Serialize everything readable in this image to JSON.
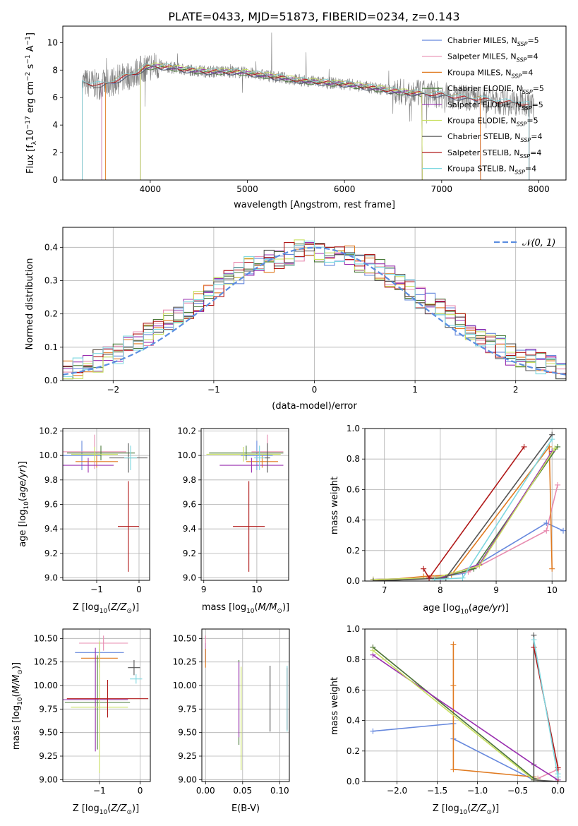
{
  "figure": {
    "title": "PLATE=0433, MJD=51873, FIBERID=0234, z=0.143"
  },
  "chart_data": [
    {
      "id": "spectrum",
      "type": "line",
      "title": "PLATE=0433, MJD=51873, FIBERID=0234, z=0.143",
      "xlabel": "wavelength [Angstrom, rest frame]",
      "ylabel": "Flux [f_λ 10^-17 erg cm^-2 s^-1 A^-1]",
      "xlim": [
        3100,
        8280
      ],
      "ylim": [
        0,
        11.2
      ],
      "xticks": [
        4000,
        5000,
        6000,
        7000,
        8000
      ],
      "yticks": [
        0,
        2,
        4,
        6,
        8,
        10
      ],
      "grid": false,
      "legend_position": "top-right",
      "data_color": "#808080",
      "continuum_wavelength": [
        3300,
        3500,
        3700,
        3850,
        3950,
        4050,
        4200,
        4400,
        4600,
        4800,
        5000,
        5200,
        5400,
        5600,
        5800,
        6000,
        6200,
        6400,
        6600,
        6800,
        7000,
        7200,
        7400,
        7600,
        7800,
        7950
      ],
      "continuum_flux": [
        7.1,
        6.9,
        7.4,
        7.8,
        8.2,
        8.3,
        8.2,
        8.0,
        7.9,
        7.9,
        7.8,
        7.6,
        7.4,
        7.2,
        7.1,
        7.0,
        6.8,
        6.6,
        6.4,
        6.3,
        6.2,
        6.0,
        5.9,
        5.7,
        5.6,
        5.4
      ],
      "models": [
        {
          "name": "Chabrier MILES, N_SSP=5",
          "color": "#6688dd",
          "wl_range": [
            3500,
            7400
          ]
        },
        {
          "name": "Salpeter MILES, N_SSP=4",
          "color": "#e88cb0",
          "wl_range": [
            3500,
            7400
          ]
        },
        {
          "name": "Kroupa MILES, N_SSP=4",
          "color": "#e07a20",
          "wl_range": [
            3540,
            7400
          ]
        },
        {
          "name": "Chabrier ELODIE, N_SSP=5",
          "color": "#4a7a3a",
          "wl_range": [
            3900,
            6800
          ]
        },
        {
          "name": "Salpeter ELODIE, N_SSP=5",
          "color": "#9a30b0",
          "wl_range": [
            3900,
            6800
          ]
        },
        {
          "name": "Kroupa ELODIE, N_SSP=5",
          "color": "#c8e060",
          "wl_range": [
            3900,
            6800
          ]
        },
        {
          "name": "Chabrier STELIB, N_SSP=4",
          "color": "#555555",
          "wl_range": [
            3300,
            7900
          ]
        },
        {
          "name": "Salpeter STELIB, N_SSP=4",
          "color": "#b01818",
          "wl_range": [
            3300,
            7900
          ]
        },
        {
          "name": "Kroupa STELIB, N_SSP=4",
          "color": "#7ed8e0",
          "wl_range": [
            3300,
            7900
          ]
        }
      ]
    },
    {
      "id": "residuals",
      "type": "line",
      "xlabel": "(data-model)/error",
      "ylabel": "Normed distribution",
      "xlim": [
        -2.5,
        2.5
      ],
      "ylim": [
        0,
        0.46
      ],
      "xticks": [
        -2,
        -1,
        0,
        1,
        2
      ],
      "yticks": [
        0.0,
        0.1,
        0.2,
        0.3,
        0.4
      ],
      "grid": true,
      "legend_position": "top-right",
      "legend": "N(0,1)",
      "gaussian_color": "#5b8de0",
      "bin_centers": [
        -2.45,
        -2.35,
        -2.25,
        -2.15,
        -2.05,
        -1.95,
        -1.85,
        -1.75,
        -1.65,
        -1.55,
        -1.45,
        -1.35,
        -1.25,
        -1.15,
        -1.05,
        -0.95,
        -0.85,
        -0.75,
        -0.65,
        -0.55,
        -0.45,
        -0.35,
        -0.25,
        -0.15,
        -0.05,
        0.05,
        0.15,
        0.25,
        0.35,
        0.45,
        0.55,
        0.65,
        0.75,
        0.85,
        0.95,
        1.05,
        1.15,
        1.25,
        1.35,
        1.45,
        1.55,
        1.65,
        1.75,
        1.85,
        1.95,
        2.05,
        2.15,
        2.25,
        2.35,
        2.45
      ],
      "hist_base": [
        0.03,
        0.04,
        0.05,
        0.06,
        0.07,
        0.08,
        0.1,
        0.12,
        0.14,
        0.16,
        0.18,
        0.2,
        0.22,
        0.24,
        0.26,
        0.28,
        0.3,
        0.32,
        0.34,
        0.35,
        0.36,
        0.37,
        0.38,
        0.39,
        0.39,
        0.39,
        0.38,
        0.38,
        0.37,
        0.36,
        0.35,
        0.33,
        0.31,
        0.29,
        0.27,
        0.25,
        0.23,
        0.21,
        0.19,
        0.17,
        0.15,
        0.13,
        0.11,
        0.1,
        0.08,
        0.07,
        0.06,
        0.05,
        0.04,
        0.03
      ],
      "hist_colors": [
        "#6688dd",
        "#e88cb0",
        "#e07a20",
        "#4a7a3a",
        "#9a30b0",
        "#c8e060",
        "#555555",
        "#b01818",
        "#7ed8e0"
      ]
    },
    {
      "id": "age-vs-Z",
      "type": "scatter",
      "xlabel": "Z [log10(Z/Z⊙)]",
      "ylabel": "age  [log10(age/yr)]",
      "xlim": [
        -1.8,
        0.25
      ],
      "ylim": [
        8.98,
        10.22
      ],
      "xticks": [
        -1,
        0
      ],
      "yticks": [
        9.0,
        9.2,
        9.4,
        9.6,
        9.8,
        10.0,
        10.2
      ],
      "grid": true,
      "points": [
        {
          "color": "#6688dd",
          "x": -1.35,
          "xerr": 0.45,
          "y": 10.0,
          "yerr": 0.12
        },
        {
          "color": "#e88cb0",
          "x": -1.05,
          "xerr": 0.75,
          "y": 10.03,
          "yerr": 0.14
        },
        {
          "color": "#e07a20",
          "x": -1.0,
          "xerr": 0.5,
          "y": 9.95,
          "yerr": 0.05
        },
        {
          "color": "#4a7a3a",
          "x": -0.9,
          "xerr": 0.8,
          "y": 10.02,
          "yerr": 0.06
        },
        {
          "color": "#9a30b0",
          "x": -1.2,
          "xerr": 0.6,
          "y": 9.92,
          "yerr": 0.06
        },
        {
          "color": "#c8e060",
          "x": -1.05,
          "xerr": 0.55,
          "y": 10.01,
          "yerr": 0.06
        },
        {
          "color": "#555555",
          "x": -0.25,
          "xerr": 0.45,
          "y": 9.98,
          "yerr": 0.12
        },
        {
          "color": "#b01818",
          "x": -0.25,
          "xerr": 0.25,
          "y": 9.42,
          "yerr": 0.37
        },
        {
          "color": "#7ed8e0",
          "x": -0.2,
          "xerr": 0.15,
          "y": 9.98,
          "yerr": 0.1
        }
      ]
    },
    {
      "id": "age-vs-mass",
      "type": "scatter",
      "xlabel": "mass [log10(M/M⊙)]",
      "ylabel": "",
      "xlim": [
        8.95,
        10.6
      ],
      "ylim": [
        8.98,
        10.22
      ],
      "xticks": [
        9,
        10
      ],
      "yticks": [
        9.0,
        9.2,
        9.4,
        9.6,
        9.8,
        10.0,
        10.2
      ],
      "grid": true,
      "points": [
        {
          "color": "#6688dd",
          "x": 10.0,
          "xerr": 0.3,
          "y": 10.0,
          "yerr": 0.12
        },
        {
          "color": "#e88cb0",
          "x": 10.2,
          "xerr": 0.3,
          "y": 10.03,
          "yerr": 0.14
        },
        {
          "color": "#e07a20",
          "x": 10.1,
          "xerr": 0.3,
          "y": 9.95,
          "yerr": 0.05
        },
        {
          "color": "#4a7a3a",
          "x": 9.8,
          "xerr": 0.7,
          "y": 10.02,
          "yerr": 0.06
        },
        {
          "color": "#9a30b0",
          "x": 9.9,
          "xerr": 0.6,
          "y": 9.92,
          "yerr": 0.06
        },
        {
          "color": "#c8e060",
          "x": 9.75,
          "xerr": 0.7,
          "y": 10.01,
          "yerr": 0.06
        },
        {
          "color": "#555555",
          "x": 10.2,
          "xerr": 0.05,
          "y": 9.98,
          "yerr": 0.12
        },
        {
          "color": "#b01818",
          "x": 9.85,
          "xerr": 0.3,
          "y": 9.42,
          "yerr": 0.37
        },
        {
          "color": "#7ed8e0",
          "x": 10.05,
          "xerr": 0.1,
          "y": 9.98,
          "yerr": 0.1
        }
      ]
    },
    {
      "id": "massweight-vs-age",
      "type": "line",
      "xlabel": "age  [log10(age/yr)]",
      "ylabel": "mass weight",
      "xlim": [
        6.65,
        10.25
      ],
      "ylim": [
        0,
        1.0
      ],
      "xticks": [
        7,
        8,
        9,
        10
      ],
      "yticks": [
        0.0,
        0.2,
        0.4,
        0.6,
        0.8,
        1.0
      ],
      "grid": true,
      "series": [
        {
          "color": "#6688dd",
          "x": [
            6.8,
            7.9,
            8.4,
            9.9,
            10.2
          ],
          "y": [
            0.01,
            0.02,
            0.05,
            0.38,
            0.33
          ]
        },
        {
          "color": "#e88cb0",
          "x": [
            6.8,
            7.8,
            8.5,
            9.9,
            10.1
          ],
          "y": [
            0.01,
            0.02,
            0.06,
            0.33,
            0.63
          ]
        },
        {
          "color": "#e07a20",
          "x": [
            6.8,
            7.7,
            8.2,
            9.95,
            10.0
          ],
          "y": [
            0.0,
            0.03,
            0.04,
            0.88,
            0.08
          ]
        },
        {
          "color": "#4a7a3a",
          "x": [
            6.8,
            8.0,
            8.6,
            10.1
          ],
          "y": [
            0.0,
            0.02,
            0.08,
            0.88
          ]
        },
        {
          "color": "#9a30b0",
          "x": [
            6.8,
            8.0,
            8.7,
            10.0
          ],
          "y": [
            0.01,
            0.02,
            0.11,
            0.85
          ]
        },
        {
          "color": "#c8e060",
          "x": [
            6.8,
            7.9,
            8.7,
            10.05
          ],
          "y": [
            0.01,
            0.02,
            0.1,
            0.87
          ]
        },
        {
          "color": "#555555",
          "x": [
            6.8,
            8.1,
            10.0
          ],
          "y": [
            0.0,
            0.02,
            0.96
          ]
        },
        {
          "color": "#b01818",
          "x": [
            7.7,
            7.8,
            9.5
          ],
          "y": [
            0.08,
            0.02,
            0.88
          ]
        },
        {
          "color": "#7ed8e0",
          "x": [
            7.9,
            8.4,
            10.0
          ],
          "y": [
            0.01,
            0.02,
            0.93
          ]
        }
      ]
    },
    {
      "id": "mass-vs-Z",
      "type": "scatter",
      "xlabel": "Z [log10(Z/Z⊙)]",
      "ylabel": "mass [log10(M/M⊙)]",
      "xlim": [
        -1.9,
        0.25
      ],
      "ylim": [
        8.98,
        10.6
      ],
      "xticks": [
        -1,
        0
      ],
      "yticks": [
        9.0,
        9.25,
        9.5,
        9.75,
        10.0,
        10.25,
        10.5
      ],
      "grid": true,
      "points": [
        {
          "color": "#6688dd",
          "x": -1.0,
          "xerr": 0.6,
          "y": 10.35,
          "yerr": 0.1
        },
        {
          "color": "#e88cb0",
          "x": -0.9,
          "xerr": 0.6,
          "y": 10.45,
          "yerr": 0.08
        },
        {
          "color": "#e07a20",
          "x": -1.0,
          "xerr": 0.45,
          "y": 10.29,
          "yerr": 0.1
        },
        {
          "color": "#4a7a3a",
          "x": -1.05,
          "xerr": 0.8,
          "y": 9.82,
          "yerr": 0.5
        },
        {
          "color": "#9a30b0",
          "x": -1.1,
          "xerr": 0.8,
          "y": 9.85,
          "yerr": 0.55
        },
        {
          "color": "#c8e060",
          "x": -1.0,
          "xerr": 0.7,
          "y": 9.77,
          "yerr": 0.7
        },
        {
          "color": "#555555",
          "x": -0.15,
          "xerr": 0.15,
          "y": 10.19,
          "yerr": 0.08
        },
        {
          "color": "#b01818",
          "x": -0.8,
          "xerr": 1.0,
          "y": 9.86,
          "yerr": 0.2
        },
        {
          "color": "#7ed8e0",
          "x": -0.1,
          "xerr": 0.15,
          "y": 10.07,
          "yerr": 0.05
        }
      ]
    },
    {
      "id": "mass-vs-EBV",
      "type": "scatter",
      "xlabel": "E(B-V)",
      "ylabel": "",
      "xlim": [
        -0.005,
        0.113
      ],
      "ylim": [
        8.98,
        10.6
      ],
      "xticks": [
        0.0,
        0.05,
        0.1
      ],
      "yticks": [
        9.0,
        9.25,
        9.5,
        9.75,
        10.0,
        10.25,
        10.5
      ],
      "grid": true,
      "points": [
        {
          "color": "#6688dd",
          "x": 0.0,
          "xerr": 0.0,
          "y": 10.35,
          "yerr": 0.1
        },
        {
          "color": "#e88cb0",
          "x": 0.0,
          "xerr": 0.0,
          "y": 10.45,
          "yerr": 0.08
        },
        {
          "color": "#e07a20",
          "x": 0.0,
          "xerr": 0.0,
          "y": 10.29,
          "yerr": 0.1
        },
        {
          "color": "#4a7a3a",
          "x": 0.045,
          "xerr": 0.0,
          "y": 9.82,
          "yerr": 0.45
        },
        {
          "color": "#9a30b0",
          "x": 0.045,
          "xerr": 0.0,
          "y": 9.85,
          "yerr": 0.4
        },
        {
          "color": "#c8e060",
          "x": 0.048,
          "xerr": 0.0,
          "y": 9.65,
          "yerr": 0.55
        },
        {
          "color": "#555555",
          "x": 0.087,
          "xerr": 0.0,
          "y": 9.86,
          "yerr": 0.35
        },
        {
          "color": "#b01818",
          "x": 0.11,
          "xerr": 0.0,
          "y": 9.86,
          "yerr": 0.33
        },
        {
          "color": "#7ed8e0",
          "x": 0.11,
          "xerr": 0.0,
          "y": 9.86,
          "yerr": 0.35
        }
      ]
    },
    {
      "id": "massweight-vs-Z",
      "type": "line",
      "xlabel": "Z [log10(Z/Z⊙)]",
      "ylabel": "mass weight",
      "xlim": [
        -2.4,
        0.1
      ],
      "ylim": [
        0,
        1.0
      ],
      "xticks": [
        -2.0,
        -1.5,
        -1.0,
        -0.5,
        0.0
      ],
      "yticks": [
        0.0,
        0.2,
        0.4,
        0.6,
        0.8,
        1.0
      ],
      "grid": true,
      "series": [
        {
          "color": "#6688dd",
          "x": [
            -2.3,
            -1.3,
            -1.3,
            -0.3
          ],
          "y": [
            0.33,
            0.38,
            0.28,
            0.01
          ]
        },
        {
          "color": "#e88cb0",
          "x": [
            -2.3,
            -0.3,
            -0.25,
            0.0
          ],
          "y": [
            0.88,
            0.02,
            0.02,
            0.08
          ]
        },
        {
          "color": "#e07a20",
          "x": [
            -1.3,
            -1.3,
            -1.3,
            -0.3
          ],
          "y": [
            0.9,
            0.63,
            0.08,
            0.03
          ]
        },
        {
          "color": "#4a7a3a",
          "x": [
            -2.3,
            -0.3,
            -0.3
          ],
          "y": [
            0.88,
            0.02,
            0.0
          ]
        },
        {
          "color": "#9a30b0",
          "x": [
            -2.3,
            -0.3,
            0.0
          ],
          "y": [
            0.83,
            0.11,
            0.01
          ]
        },
        {
          "color": "#c8e060",
          "x": [
            -2.3,
            -0.3,
            -0.25
          ],
          "y": [
            0.86,
            0.01,
            0.01
          ]
        },
        {
          "color": "#555555",
          "x": [
            -0.3,
            -0.3,
            0.0
          ],
          "y": [
            0.96,
            0.01,
            0.0
          ]
        },
        {
          "color": "#b01818",
          "x": [
            -0.3,
            0.0,
            0.0
          ],
          "y": [
            0.88,
            0.09,
            0.0
          ]
        },
        {
          "color": "#7ed8e0",
          "x": [
            -0.3,
            0.0,
            0.0
          ],
          "y": [
            0.93,
            0.03,
            0.05
          ]
        }
      ]
    }
  ]
}
